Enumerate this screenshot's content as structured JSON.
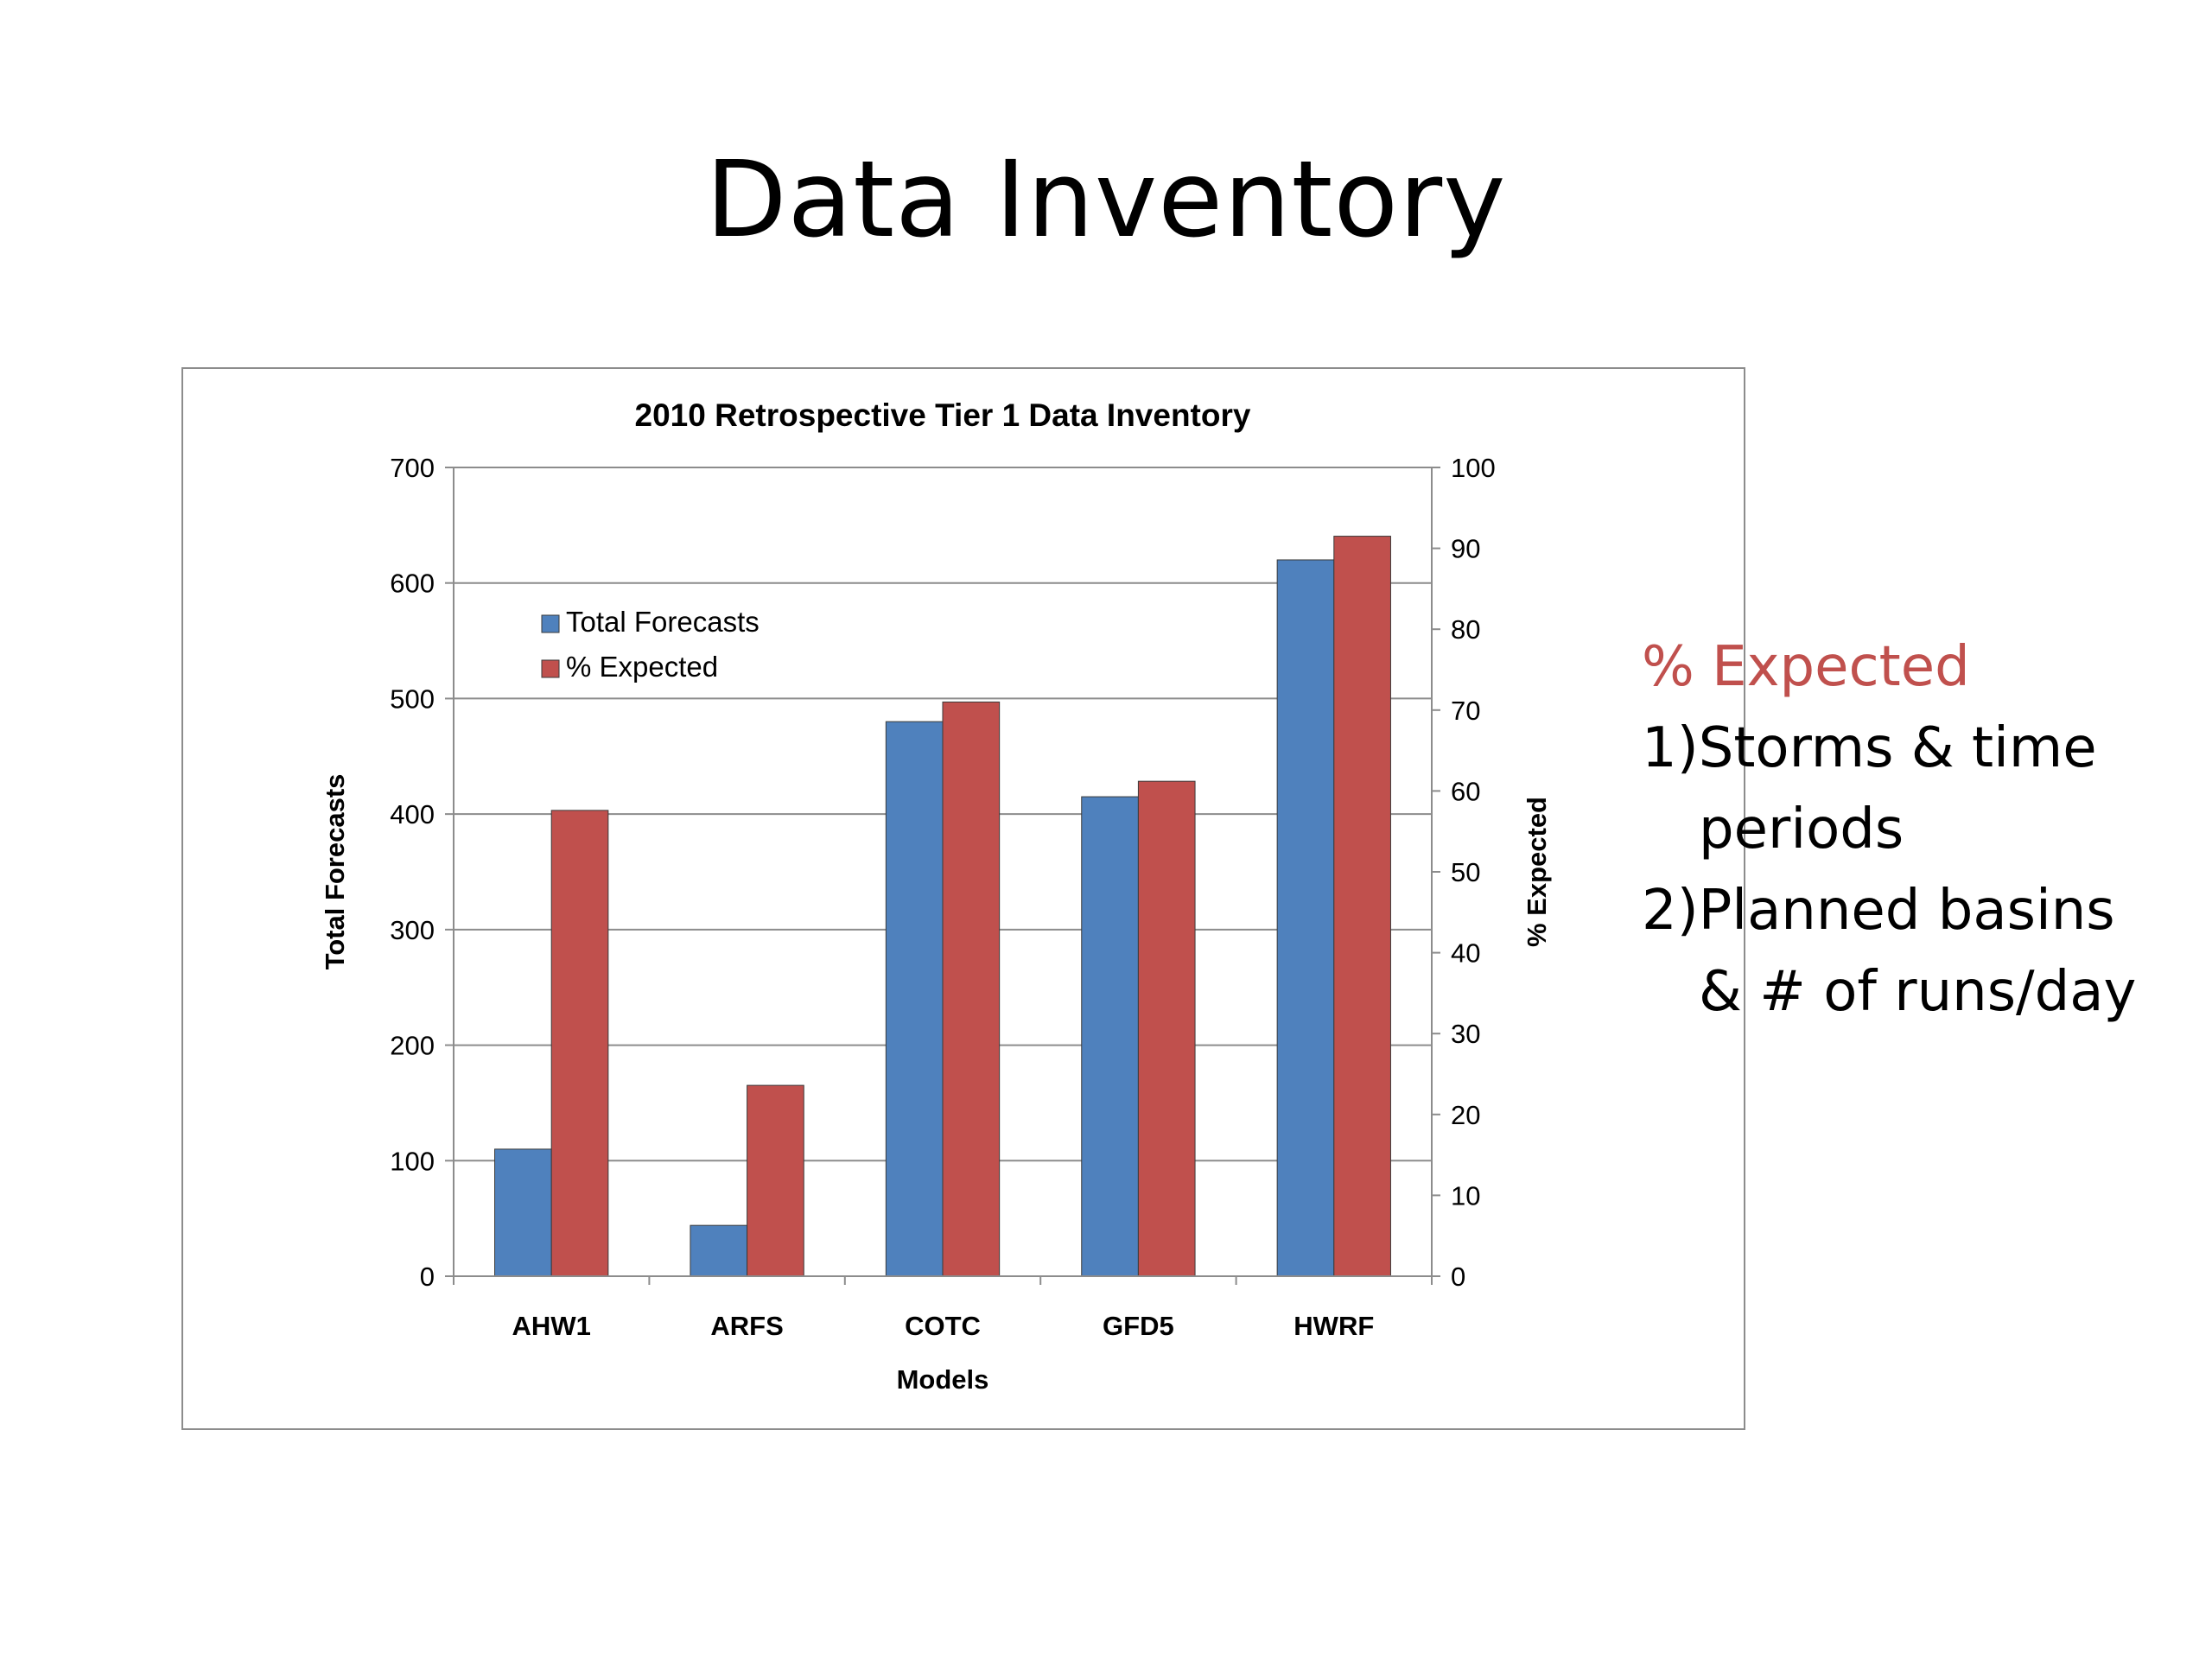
{
  "slide": {
    "title": "Data Inventory",
    "notes": {
      "heading": "% Expected",
      "lines": [
        "1)Storms & time",
        "periods",
        "2)Planned basins",
        "& # of runs/day"
      ]
    }
  },
  "chart_data": {
    "type": "bar",
    "title": "2010 Retrospective Tier 1 Data Inventory",
    "xlabel": "Models",
    "ylabel": "Total Forecasts",
    "y2label": "% Expected",
    "categories": [
      "AHW1",
      "ARFS",
      "COTC",
      "GFD5",
      "HWRF"
    ],
    "ylim": [
      0,
      700
    ],
    "yticks": [
      0,
      100,
      200,
      300,
      400,
      500,
      600,
      700
    ],
    "y2lim": [
      0,
      100
    ],
    "y2ticks": [
      0,
      10,
      20,
      30,
      40,
      50,
      60,
      70,
      80,
      90,
      100
    ],
    "grid": true,
    "legend": "top-left",
    "series": [
      {
        "name": "Total Forecasts",
        "axis": "left",
        "color": "#4f81bd",
        "values": [
          110,
          44,
          480,
          415,
          620
        ]
      },
      {
        "name": "% Expected",
        "axis": "right",
        "color": "#c0504d",
        "values": [
          57.6,
          23.6,
          71,
          61.2,
          91.5
        ]
      }
    ]
  }
}
